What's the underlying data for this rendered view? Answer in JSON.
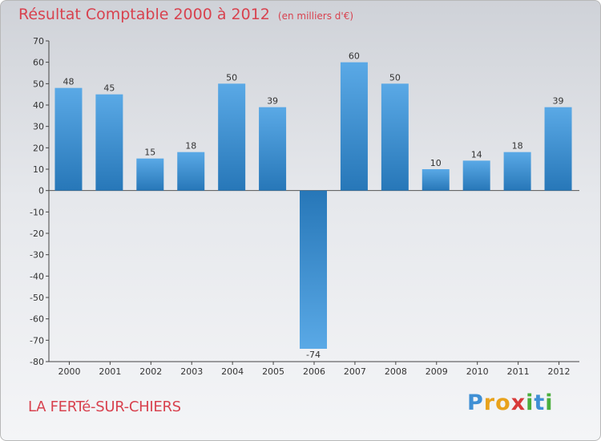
{
  "title": {
    "main": "Résultat Comptable 2000 à 2012",
    "unit": "(en milliers d'€)"
  },
  "commune": "LA FERTé-SUR-CHIERS",
  "brand": {
    "text": "Proxiti",
    "letters": [
      {
        "ch": "P",
        "color": "#3f8fd4"
      },
      {
        "ch": "r",
        "color": "#e8a21c"
      },
      {
        "ch": "o",
        "color": "#e8a21c"
      },
      {
        "ch": "x",
        "color": "#d83a3a"
      },
      {
        "ch": "i",
        "color": "#4aae3c"
      },
      {
        "ch": "t",
        "color": "#3f8fd4"
      },
      {
        "ch": "i",
        "color": "#4aae3c"
      }
    ]
  },
  "colors": {
    "bar_light": "#5aa9e6",
    "bar_dark": "#2777b8",
    "accent": "#d8424f"
  },
  "chart_data": {
    "type": "bar",
    "title": "Résultat Comptable 2000 à 2012",
    "xlabel": "",
    "ylabel": "(en milliers d'€)",
    "categories": [
      "2000",
      "2001",
      "2002",
      "2003",
      "2004",
      "2005",
      "2006",
      "2007",
      "2008",
      "2009",
      "2010",
      "2011",
      "2012"
    ],
    "values": [
      48,
      45,
      15,
      18,
      50,
      39,
      -74,
      60,
      50,
      10,
      14,
      18,
      39
    ],
    "ylim": [
      -80,
      70
    ],
    "yticks": [
      70,
      60,
      50,
      40,
      30,
      20,
      10,
      0,
      -10,
      -20,
      -30,
      -40,
      -50,
      -60,
      -70,
      -80
    ],
    "grid": false,
    "legend": "none"
  }
}
